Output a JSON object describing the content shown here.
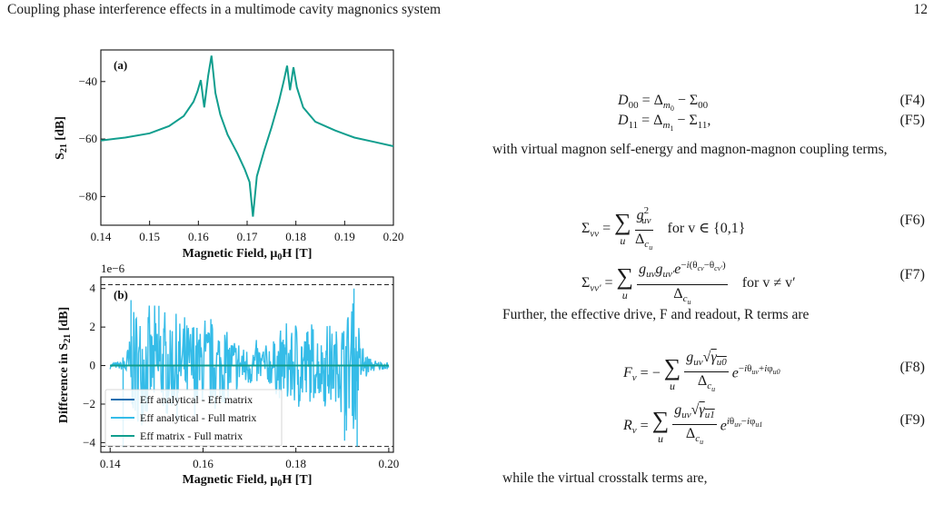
{
  "header": {
    "title": "Coupling phase interference effects in a multimode cavity magnonics system",
    "page_number": "12"
  },
  "chart_data": [
    {
      "type": "line",
      "panel_label": "(a)",
      "xlabel": "Magnetic Field, μ0H [T]",
      "ylabel": "S21 [dB]",
      "xlim": [
        0.14,
        0.2
      ],
      "ylim": [
        -90,
        -29
      ],
      "xticks": [
        "0.14",
        "0.15",
        "0.16",
        "0.17",
        "0.18",
        "0.19",
        "0.20"
      ],
      "yticks": [
        "−40",
        "−60",
        "−80"
      ],
      "series": [
        {
          "color": "#119e8e",
          "x": [
            0.14,
            0.145,
            0.15,
            0.154,
            0.157,
            0.159,
            0.1598,
            0.1605,
            0.1612,
            0.162,
            0.1627,
            0.1635,
            0.1645,
            0.166,
            0.168,
            0.1695,
            0.1705,
            0.1712,
            0.172,
            0.1735,
            0.175,
            0.1765,
            0.1775,
            0.1782,
            0.1788,
            0.1795,
            0.1802,
            0.1815,
            0.184,
            0.188,
            0.192,
            0.196,
            0.2
          ],
          "y": [
            -60.5,
            -59.5,
            -58,
            -55.5,
            -52,
            -47,
            -43.5,
            -39.5,
            -49,
            -38,
            -31,
            -44,
            -51.5,
            -58.5,
            -65,
            -70.5,
            -75,
            -87,
            -73,
            -64,
            -56,
            -47,
            -40,
            -34.5,
            -43,
            -35,
            -42,
            -49,
            -54,
            -57,
            -59.5,
            -61,
            -62.5
          ]
        }
      ]
    },
    {
      "type": "line",
      "panel_label": "(b)",
      "xlabel": "Magnetic Field, μ0H [T]",
      "ylabel": "Difference in S21 [dB]",
      "scale_label": "1e−6",
      "xlim": [
        0.138,
        0.201
      ],
      "ylim": [
        -4.5,
        4.6
      ],
      "xticks": [
        "0.14",
        "0.16",
        "0.18",
        "0.20"
      ],
      "yticks": [
        "4",
        "2",
        "0",
        "−2",
        "−4"
      ],
      "hlines": [
        4.2,
        -4.2
      ],
      "legend": {
        "placement": "lower-left",
        "entries": [
          "Eff analytical - Eff matrix",
          "Eff analytical - Full matrix",
          "Eff matrix - Full matrix"
        ]
      },
      "series": [
        {
          "name": "Eff analytical - Eff matrix",
          "color": "#1a6fb0",
          "x": [
            0.14,
            0.2
          ],
          "y": [
            0,
            0
          ]
        },
        {
          "name": "Eff analytical - Full matrix",
          "color": "#35bce8",
          "x_range": [
            0.14,
            0.2
          ],
          "amplitude_envelope": [
            [
              0.14,
              0.2
            ],
            [
              0.1425,
              0.3
            ],
            [
              0.1435,
              1.2
            ],
            [
              0.145,
              3.5
            ],
            [
              0.15,
              3.2
            ],
            [
              0.156,
              2.8
            ],
            [
              0.16,
              3.1
            ],
            [
              0.165,
              2.2
            ],
            [
              0.17,
              1.3
            ],
            [
              0.175,
              1.6
            ],
            [
              0.18,
              3.2
            ],
            [
              0.185,
              2.2
            ],
            [
              0.189,
              2.8
            ],
            [
              0.192,
              4.0
            ],
            [
              0.1925,
              4.2
            ],
            [
              0.194,
              1.5
            ],
            [
              0.196,
              0.4
            ],
            [
              0.2,
              0.2
            ]
          ],
          "min_y": -4.2,
          "max_y": 4.0
        },
        {
          "name": "Eff matrix - Full matrix",
          "color": "#119e8e",
          "x": [
            0.14,
            0.2
          ],
          "y": [
            0,
            0
          ]
        }
      ]
    }
  ],
  "text": {
    "coupling_intro": "with virtual magnon self-energy and magnon-magnon coupling terms,",
    "drive_intro": "Further, the effective drive, F and readout, R terms are",
    "crosstalk_intro": "while the virtual crosstalk terms are,",
    "for_v": "for v ∈ {0,1}",
    "for_vv": "for v ≠ v′"
  },
  "equations": {
    "F4": "(F4)",
    "F5": "(F5)",
    "F6": "(F6)",
    "F7": "(F7)",
    "F8": "(F8)",
    "F9": "(F9)"
  }
}
